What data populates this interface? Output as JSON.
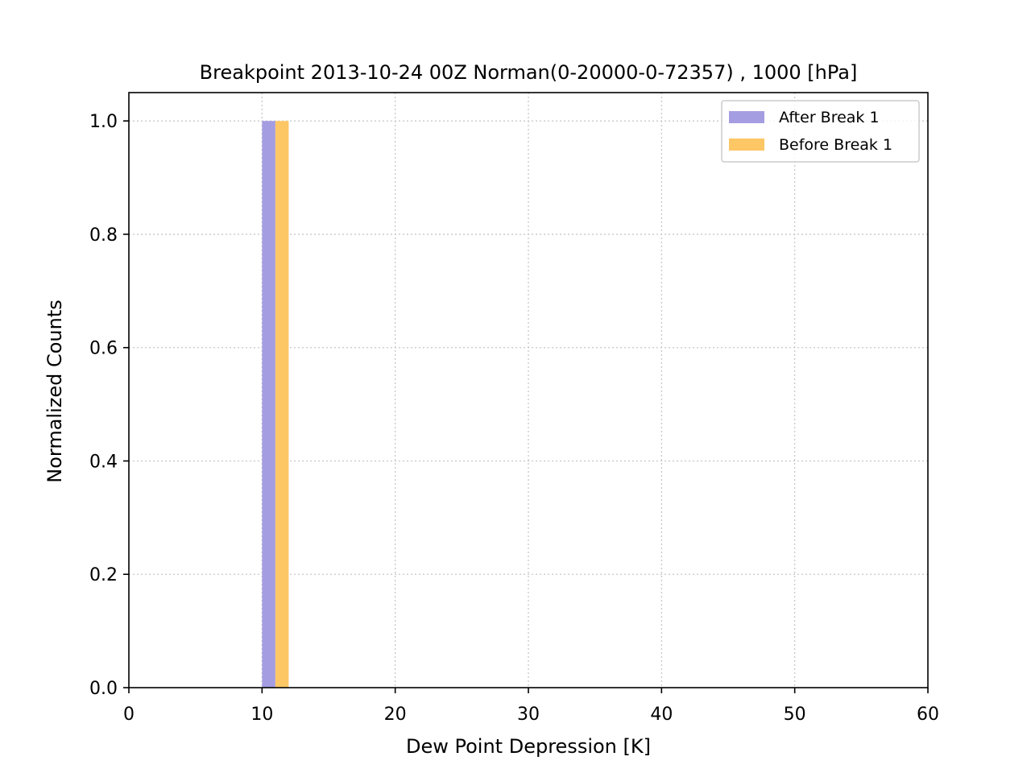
{
  "chart_data": {
    "type": "bar",
    "title": "Breakpoint 2013-10-24 00Z Norman(0-20000-0-72357) , 1000 [hPa]",
    "xlabel": "Dew Point Depression [K]",
    "ylabel": "Normalized Counts",
    "xlim": [
      0,
      60
    ],
    "ylim": [
      0,
      1.05
    ],
    "xticks": [
      0,
      10,
      20,
      30,
      40,
      50,
      60
    ],
    "xtick_labels": [
      "0",
      "10",
      "20",
      "30",
      "40",
      "50",
      "60"
    ],
    "yticks": [
      0,
      0.2,
      0.4,
      0.6,
      0.8,
      1.0
    ],
    "ytick_labels": [
      "0.0",
      "0.2",
      "0.4",
      "0.6",
      "0.8",
      "1.0"
    ],
    "grid": true,
    "legend_position": "top-right",
    "series": [
      {
        "name": "After Break 1",
        "color": "#a59de2",
        "bars": [
          {
            "x_start": 10,
            "x_end": 11,
            "value": 1.0
          }
        ]
      },
      {
        "name": "Before Break 1",
        "color": "#fdc766",
        "bars": [
          {
            "x_start": 11,
            "x_end": 12,
            "value": 1.0
          }
        ]
      }
    ]
  }
}
